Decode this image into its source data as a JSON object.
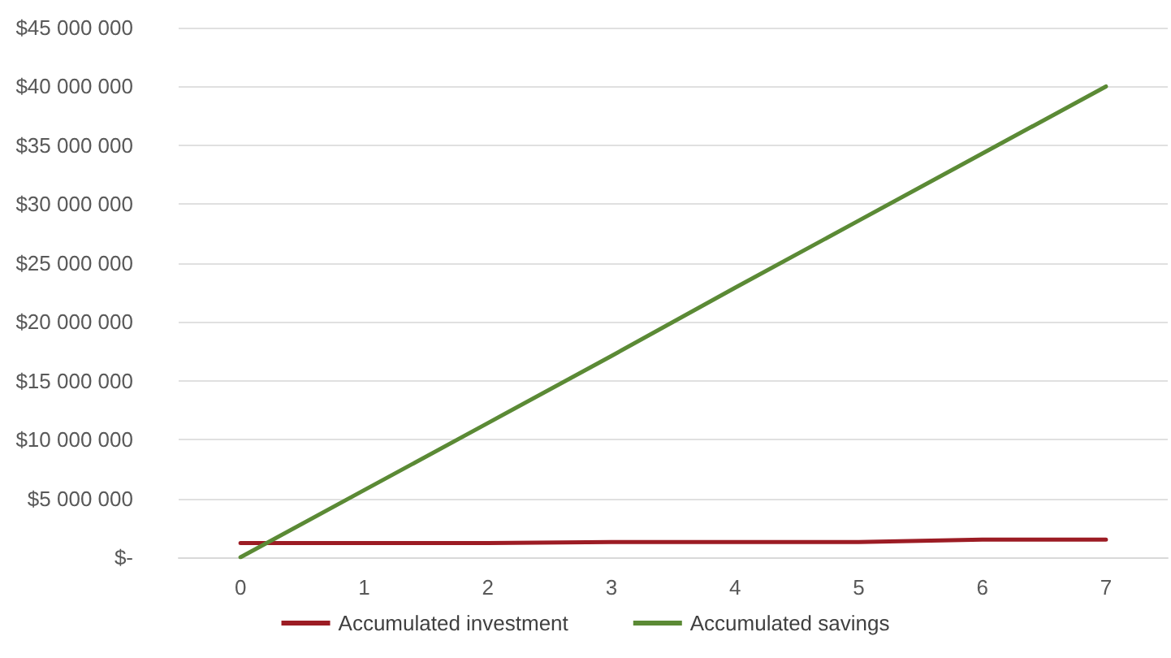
{
  "chart_data": {
    "type": "line",
    "categories": [
      "0",
      "1",
      "2",
      "3",
      "4",
      "5",
      "6",
      "7"
    ],
    "series": [
      {
        "name": "Accumulated investment",
        "color": "#9c1c24",
        "values": [
          1200000,
          1200000,
          1200000,
          1300000,
          1300000,
          1300000,
          1500000,
          1500000
        ]
      },
      {
        "name": "Accumulated savings",
        "color": "#5b8a35",
        "values": [
          0,
          5700000,
          11400000,
          17100000,
          22900000,
          28600000,
          34300000,
          40000000
        ]
      }
    ],
    "ylim": [
      0,
      45000000
    ],
    "yticks": [
      {
        "value": 0,
        "label": "$-"
      },
      {
        "value": 5000000,
        "label": "$5 000 000"
      },
      {
        "value": 10000000,
        "label": "$10 000 000"
      },
      {
        "value": 15000000,
        "label": "$15 000 000"
      },
      {
        "value": 20000000,
        "label": "$20 000 000"
      },
      {
        "value": 25000000,
        "label": "$25 000 000"
      },
      {
        "value": 30000000,
        "label": "$30 000 000"
      },
      {
        "value": 35000000,
        "label": "$35 000 000"
      },
      {
        "value": 40000000,
        "label": "$40 000 000"
      },
      {
        "value": 45000000,
        "label": "$45 000 000"
      }
    ],
    "grid": "y",
    "legend": "bottom",
    "marker": "none",
    "line_style": "solid"
  }
}
